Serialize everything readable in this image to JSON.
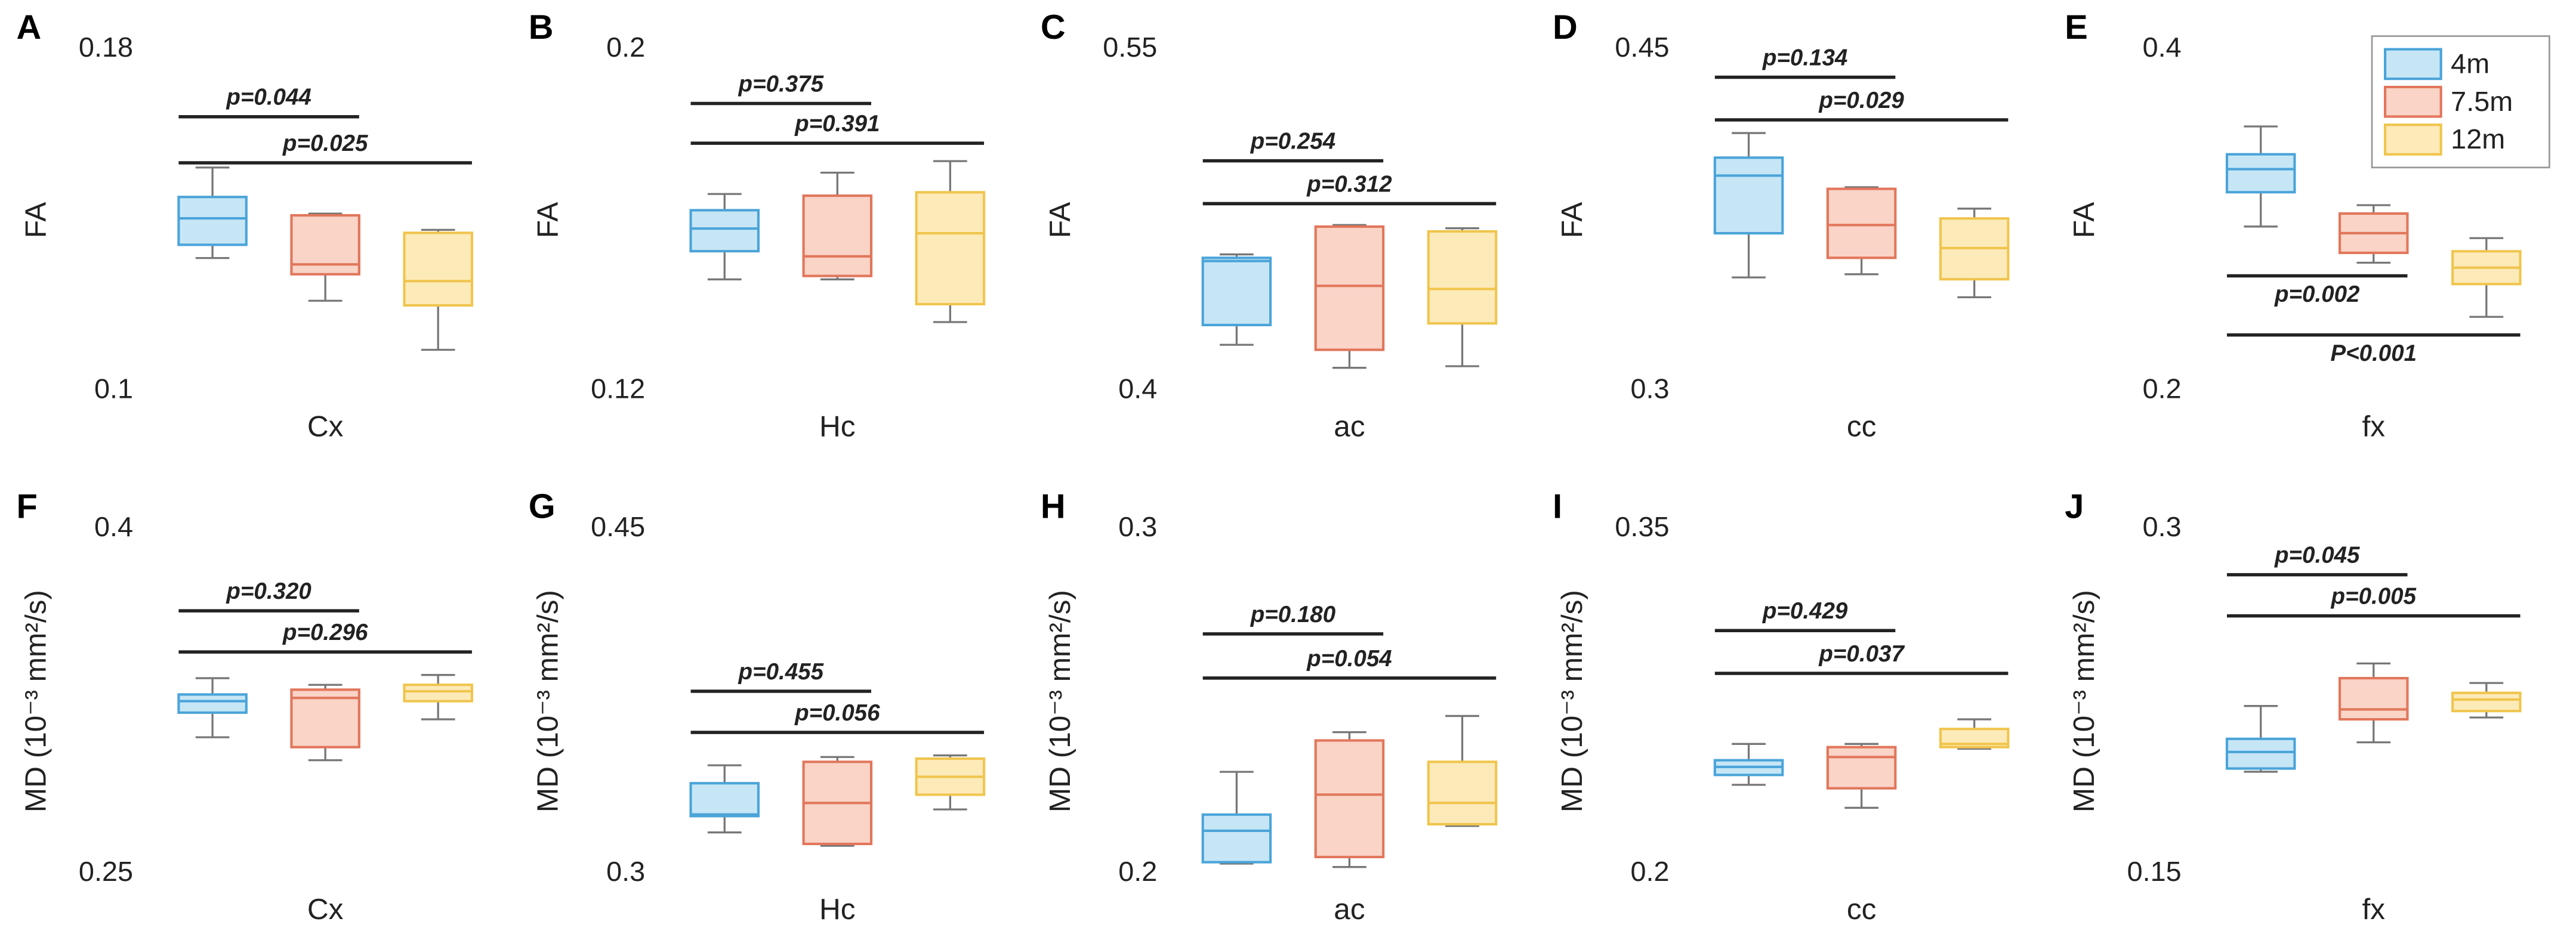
{
  "chart_data": [
    {
      "type": "box",
      "panel": "A",
      "ylabel": "FA",
      "xlabel": "Cx",
      "ylim": [
        0.1,
        0.18
      ],
      "yticks": [
        0.1,
        0.18
      ],
      "boxes": [
        {
          "min": 0.1311,
          "q1": 0.1342,
          "median": 0.1404,
          "q3": 0.1454,
          "max": 0.1523
        },
        {
          "min": 0.1211,
          "q1": 0.1273,
          "median": 0.1296,
          "q3": 0.1411,
          "max": 0.1415
        },
        {
          "min": 0.1096,
          "q1": 0.12,
          "median": 0.1257,
          "q3": 0.137,
          "max": 0.1377
        }
      ],
      "annotations": [
        {
          "text": "p=0.044",
          "y": 0.1642,
          "from": 0,
          "to": 1,
          "side": "above"
        },
        {
          "text": "p=0.025",
          "y": 0.1534,
          "from": 0,
          "to": 2,
          "side": "above"
        }
      ]
    },
    {
      "type": "box",
      "panel": "B",
      "ylabel": "FA",
      "xlabel": "Hc",
      "ylim": [
        0.12,
        0.2
      ],
      "yticks": [
        0.12,
        0.2
      ],
      "boxes": [
        {
          "min": 0.1461,
          "q1": 0.1527,
          "median": 0.158,
          "q3": 0.1623,
          "max": 0.1661
        },
        {
          "min": 0.1461,
          "q1": 0.1469,
          "median": 0.1515,
          "q3": 0.1657,
          "max": 0.1711
        },
        {
          "min": 0.1361,
          "q1": 0.1403,
          "median": 0.1569,
          "q3": 0.1665,
          "max": 0.1738
        }
      ],
      "annotations": [
        {
          "text": "p=0.375",
          "y": 0.1873,
          "from": 0,
          "to": 1,
          "side": "above"
        },
        {
          "text": "p=0.391",
          "y": 0.178,
          "from": 0,
          "to": 2,
          "side": "above"
        }
      ]
    },
    {
      "type": "box",
      "panel": "C",
      "ylabel": "FA",
      "xlabel": "ac",
      "ylim": [
        0.4,
        0.55
      ],
      "yticks": [
        0.4,
        0.55
      ],
      "boxes": [
        {
          "min": 0.4202,
          "q1": 0.4289,
          "median": 0.457,
          "q3": 0.4584,
          "max": 0.4599
        },
        {
          "min": 0.4101,
          "q1": 0.418,
          "median": 0.4461,
          "q3": 0.4721,
          "max": 0.4728
        },
        {
          "min": 0.4108,
          "q1": 0.4296,
          "median": 0.4447,
          "q3": 0.47,
          "max": 0.4714
        }
      ],
      "annotations": [
        {
          "text": "p=0.254",
          "y": 0.501,
          "from": 0,
          "to": 1,
          "side": "above"
        },
        {
          "text": "p=0.312",
          "y": 0.4822,
          "from": 0,
          "to": 2,
          "side": "above"
        }
      ]
    },
    {
      "type": "box",
      "panel": "D",
      "ylabel": "FA",
      "xlabel": "cc",
      "ylim": [
        0.3,
        0.45
      ],
      "yticks": [
        0.3,
        0.45
      ],
      "boxes": [
        {
          "min": 0.3498,
          "q1": 0.3692,
          "median": 0.3945,
          "q3": 0.4024,
          "max": 0.4132
        },
        {
          "min": 0.3512,
          "q1": 0.3584,
          "median": 0.3728,
          "q3": 0.3887,
          "max": 0.3894
        },
        {
          "min": 0.3411,
          "q1": 0.349,
          "median": 0.3627,
          "q3": 0.3757,
          "max": 0.38
        }
      ],
      "annotations": [
        {
          "text": "p=0.134",
          "y": 0.4377,
          "from": 0,
          "to": 1,
          "side": "above"
        },
        {
          "text": "p=0.029",
          "y": 0.419,
          "from": 0,
          "to": 2,
          "side": "above"
        }
      ]
    },
    {
      "type": "box",
      "panel": "E",
      "ylabel": "FA",
      "xlabel": "fx",
      "ylim": [
        0.2,
        0.4
      ],
      "yticks": [
        0.2,
        0.4
      ],
      "legend": "upper right",
      "boxes": [
        {
          "min": 0.2962,
          "q1": 0.3163,
          "median": 0.3298,
          "q3": 0.3385,
          "max": 0.3548
        },
        {
          "min": 0.275,
          "q1": 0.2808,
          "median": 0.2923,
          "q3": 0.3038,
          "max": 0.3087
        },
        {
          "min": 0.2433,
          "q1": 0.2625,
          "median": 0.2721,
          "q3": 0.2817,
          "max": 0.2894
        }
      ],
      "annotations": [
        {
          "text": "p=0.002",
          "y": 0.2673,
          "from": 0,
          "to": 1,
          "side": "below"
        },
        {
          "text": "P<0.001",
          "y": 0.2327,
          "from": 0,
          "to": 2,
          "side": "below"
        }
      ]
    },
    {
      "type": "box",
      "panel": "F",
      "ylabel": "MD (10⁻³ mm²/s)",
      "xlabel": "Cx",
      "ylim": [
        0.25,
        0.4
      ],
      "yticks": [
        0.25,
        0.4
      ],
      "boxes": [
        {
          "min": 0.3093,
          "q1": 0.32,
          "median": 0.325,
          "q3": 0.3279,
          "max": 0.335
        },
        {
          "min": 0.2993,
          "q1": 0.305,
          "median": 0.3264,
          "q3": 0.33,
          "max": 0.3321
        },
        {
          "min": 0.3171,
          "q1": 0.325,
          "median": 0.3293,
          "q3": 0.3321,
          "max": 0.3364
        }
      ],
      "annotations": [
        {
          "text": "p=0.320",
          "y": 0.3643,
          "from": 0,
          "to": 1,
          "side": "above"
        },
        {
          "text": "p=0.296",
          "y": 0.3464,
          "from": 0,
          "to": 2,
          "side": "above"
        }
      ]
    },
    {
      "type": "box",
      "panel": "G",
      "ylabel": "MD (10⁻³ mm²/s)",
      "xlabel": "Hc",
      "ylim": [
        0.3,
        0.45
      ],
      "yticks": [
        0.3,
        0.45
      ],
      "boxes": [
        {
          "min": 0.3179,
          "q1": 0.325,
          "median": 0.3257,
          "q3": 0.3393,
          "max": 0.3471
        },
        {
          "min": 0.3121,
          "q1": 0.3129,
          "median": 0.3307,
          "q3": 0.3486,
          "max": 0.3507
        },
        {
          "min": 0.3279,
          "q1": 0.3343,
          "median": 0.3421,
          "q3": 0.35,
          "max": 0.3514
        }
      ],
      "annotations": [
        {
          "text": "p=0.455",
          "y": 0.3793,
          "from": 0,
          "to": 1,
          "side": "above"
        },
        {
          "text": "p=0.056",
          "y": 0.3614,
          "from": 0,
          "to": 2,
          "side": "above"
        }
      ]
    },
    {
      "type": "box",
      "panel": "H",
      "ylabel": "MD (10⁻³ mm²/s)",
      "xlabel": "ac",
      "ylim": [
        0.2,
        0.3
      ],
      "yticks": [
        0.2,
        0.3
      ],
      "boxes": [
        {
          "min": 0.2029,
          "q1": 0.2033,
          "median": 0.2124,
          "q3": 0.2171,
          "max": 0.2295
        },
        {
          "min": 0.2019,
          "q1": 0.2048,
          "median": 0.2229,
          "q3": 0.2386,
          "max": 0.241
        },
        {
          "min": 0.2138,
          "q1": 0.2143,
          "median": 0.2205,
          "q3": 0.2324,
          "max": 0.2457
        }
      ],
      "annotations": [
        {
          "text": "p=0.180",
          "y": 0.2695,
          "from": 0,
          "to": 1,
          "side": "above"
        },
        {
          "text": "p=0.054",
          "y": 0.2567,
          "from": 0,
          "to": 2,
          "side": "above"
        }
      ]
    },
    {
      "type": "box",
      "panel": "I",
      "ylabel": "MD (10⁻³ mm²/s)",
      "xlabel": "cc",
      "ylim": [
        0.2,
        0.35
      ],
      "yticks": [
        0.2,
        0.35
      ],
      "boxes": [
        {
          "min": 0.2386,
          "q1": 0.2429,
          "median": 0.2464,
          "q3": 0.2493,
          "max": 0.2564
        },
        {
          "min": 0.2286,
          "q1": 0.2371,
          "median": 0.2507,
          "q3": 0.255,
          "max": 0.2564
        },
        {
          "min": 0.2543,
          "q1": 0.255,
          "median": 0.2564,
          "q3": 0.2629,
          "max": 0.2671
        }
      ],
      "annotations": [
        {
          "text": "p=0.429",
          "y": 0.3057,
          "from": 0,
          "to": 1,
          "side": "above"
        },
        {
          "text": "p=0.037",
          "y": 0.2871,
          "from": 0,
          "to": 2,
          "side": "above"
        }
      ]
    },
    {
      "type": "box",
      "panel": "J",
      "ylabel": "MD (10⁻³ mm²/s)",
      "xlabel": "fx",
      "ylim": [
        0.15,
        0.3
      ],
      "yticks": [
        0.15,
        0.3
      ],
      "boxes": [
        {
          "min": 0.1943,
          "q1": 0.1957,
          "median": 0.2029,
          "q3": 0.2086,
          "max": 0.2229
        },
        {
          "min": 0.2071,
          "q1": 0.2171,
          "median": 0.2214,
          "q3": 0.235,
          "max": 0.2414
        },
        {
          "min": 0.2179,
          "q1": 0.2207,
          "median": 0.2257,
          "q3": 0.2286,
          "max": 0.2329
        }
      ],
      "annotations": [
        {
          "text": "p=0.045",
          "y": 0.28,
          "from": 0,
          "to": 1,
          "side": "above"
        },
        {
          "text": "p=0.005",
          "y": 0.2621,
          "from": 0,
          "to": 2,
          "side": "above"
        }
      ]
    }
  ],
  "groups": [
    {
      "name": "4m",
      "fill": "#c6e6f6",
      "edge": "#4aa4d9"
    },
    {
      "name": "7.5m",
      "fill": "#f9d4c7",
      "edge": "#e2765b"
    },
    {
      "name": "12m",
      "fill": "#fdeab9",
      "edge": "#f0c54d"
    }
  ]
}
